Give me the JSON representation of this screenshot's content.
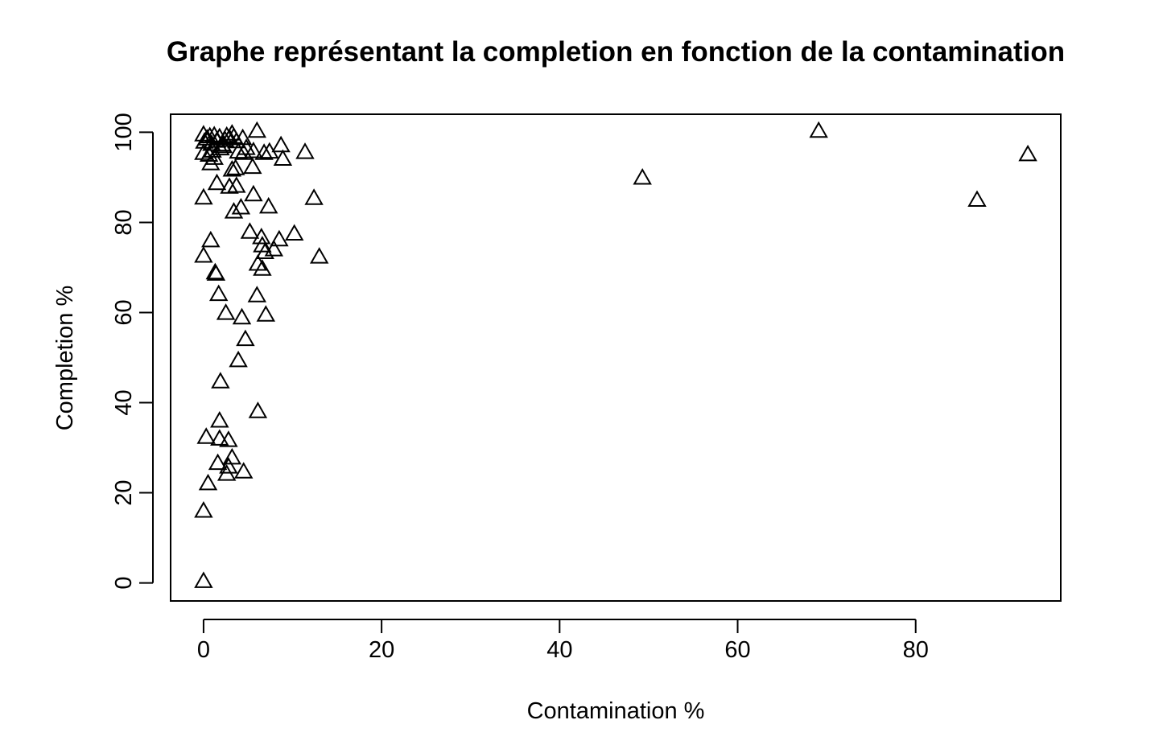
{
  "chart_data": {
    "type": "scatter",
    "title": "Graphe représentant la completion en fonction de la contamination",
    "xlabel": "Contamination %",
    "ylabel": "Completion %",
    "xlim": [
      -3.7,
      96.3
    ],
    "ylim": [
      -4,
      104
    ],
    "x_ticks": [
      0,
      20,
      40,
      60,
      80
    ],
    "y_ticks": [
      0,
      20,
      40,
      60,
      80,
      100
    ],
    "x_tick_labels": [
      "0",
      "20",
      "40",
      "60",
      "80"
    ],
    "y_tick_labels": [
      "0",
      "20",
      "40",
      "60",
      "80",
      "100"
    ],
    "grid": false,
    "legend": "none",
    "marker": "open-triangle",
    "points": [
      {
        "x": 0.0,
        "y": 99.4
      },
      {
        "x": 0.1,
        "y": 97.8
      },
      {
        "x": 0.4,
        "y": 98.5
      },
      {
        "x": 0.7,
        "y": 99.0
      },
      {
        "x": 0.9,
        "y": 97.3
      },
      {
        "x": 1.2,
        "y": 99.2
      },
      {
        "x": 1.5,
        "y": 98.0
      },
      {
        "x": 1.8,
        "y": 98.8
      },
      {
        "x": 2.1,
        "y": 97.2
      },
      {
        "x": 2.4,
        "y": 98.2
      },
      {
        "x": 2.6,
        "y": 99.1
      },
      {
        "x": 2.9,
        "y": 98.6
      },
      {
        "x": 3.2,
        "y": 99.6
      },
      {
        "x": 3.4,
        "y": 98.9
      },
      {
        "x": 3.7,
        "y": 97.9
      },
      {
        "x": 4.4,
        "y": 98.6
      },
      {
        "x": 6.0,
        "y": 100.2
      },
      {
        "x": 0.0,
        "y": 95.3
      },
      {
        "x": 0.6,
        "y": 94.9
      },
      {
        "x": 1.0,
        "y": 95.8
      },
      {
        "x": 1.2,
        "y": 94.2
      },
      {
        "x": 1.9,
        "y": 96.3
      },
      {
        "x": 2.2,
        "y": 96.8
      },
      {
        "x": 3.9,
        "y": 95.6
      },
      {
        "x": 4.5,
        "y": 95.3
      },
      {
        "x": 4.8,
        "y": 96.4
      },
      {
        "x": 5.6,
        "y": 95.7
      },
      {
        "x": 6.8,
        "y": 95.3
      },
      {
        "x": 7.4,
        "y": 95.6
      },
      {
        "x": 8.7,
        "y": 97.0
      },
      {
        "x": 11.4,
        "y": 95.5
      },
      {
        "x": 8.9,
        "y": 94.0
      },
      {
        "x": 0.8,
        "y": 93.0
      },
      {
        "x": 5.5,
        "y": 92.2
      },
      {
        "x": 3.2,
        "y": 91.6
      },
      {
        "x": 3.6,
        "y": 91.9
      },
      {
        "x": 1.5,
        "y": 88.6
      },
      {
        "x": 2.9,
        "y": 87.8
      },
      {
        "x": 3.7,
        "y": 88.0
      },
      {
        "x": 0.0,
        "y": 85.4
      },
      {
        "x": 5.6,
        "y": 86.1
      },
      {
        "x": 12.4,
        "y": 85.3
      },
      {
        "x": 3.4,
        "y": 82.3
      },
      {
        "x": 4.2,
        "y": 83.2
      },
      {
        "x": 7.3,
        "y": 83.4
      },
      {
        "x": 5.2,
        "y": 77.8
      },
      {
        "x": 6.5,
        "y": 76.6
      },
      {
        "x": 10.2,
        "y": 77.4
      },
      {
        "x": 8.5,
        "y": 76.1
      },
      {
        "x": 0.8,
        "y": 75.9
      },
      {
        "x": 6.6,
        "y": 74.8
      },
      {
        "x": 7.9,
        "y": 73.9
      },
      {
        "x": 6.9,
        "y": 73.3
      },
      {
        "x": 0.0,
        "y": 72.5
      },
      {
        "x": 13.0,
        "y": 72.3
      },
      {
        "x": 6.1,
        "y": 70.7
      },
      {
        "x": 6.6,
        "y": 69.6
      },
      {
        "x": 1.3,
        "y": 68.8
      },
      {
        "x": 1.4,
        "y": 68.5
      },
      {
        "x": 1.7,
        "y": 64.0
      },
      {
        "x": 6.0,
        "y": 63.7
      },
      {
        "x": 2.5,
        "y": 59.8
      },
      {
        "x": 7.0,
        "y": 59.4
      },
      {
        "x": 4.3,
        "y": 58.8
      },
      {
        "x": 4.7,
        "y": 54.0
      },
      {
        "x": 3.9,
        "y": 49.3
      },
      {
        "x": 1.9,
        "y": 44.6
      },
      {
        "x": 6.1,
        "y": 38.0
      },
      {
        "x": 1.8,
        "y": 35.9
      },
      {
        "x": 0.3,
        "y": 32.3
      },
      {
        "x": 1.8,
        "y": 31.9
      },
      {
        "x": 2.8,
        "y": 31.6
      },
      {
        "x": 3.2,
        "y": 27.7
      },
      {
        "x": 1.6,
        "y": 26.5
      },
      {
        "x": 2.8,
        "y": 25.7
      },
      {
        "x": 4.5,
        "y": 24.6
      },
      {
        "x": 2.6,
        "y": 24.1
      },
      {
        "x": 0.5,
        "y": 22.0
      },
      {
        "x": 0.0,
        "y": 15.9
      },
      {
        "x": 0.0,
        "y": 0.3
      },
      {
        "x": 49.3,
        "y": 89.8
      },
      {
        "x": 69.1,
        "y": 100.2
      },
      {
        "x": 86.9,
        "y": 84.9
      },
      {
        "x": 92.6,
        "y": 95.0
      }
    ]
  }
}
